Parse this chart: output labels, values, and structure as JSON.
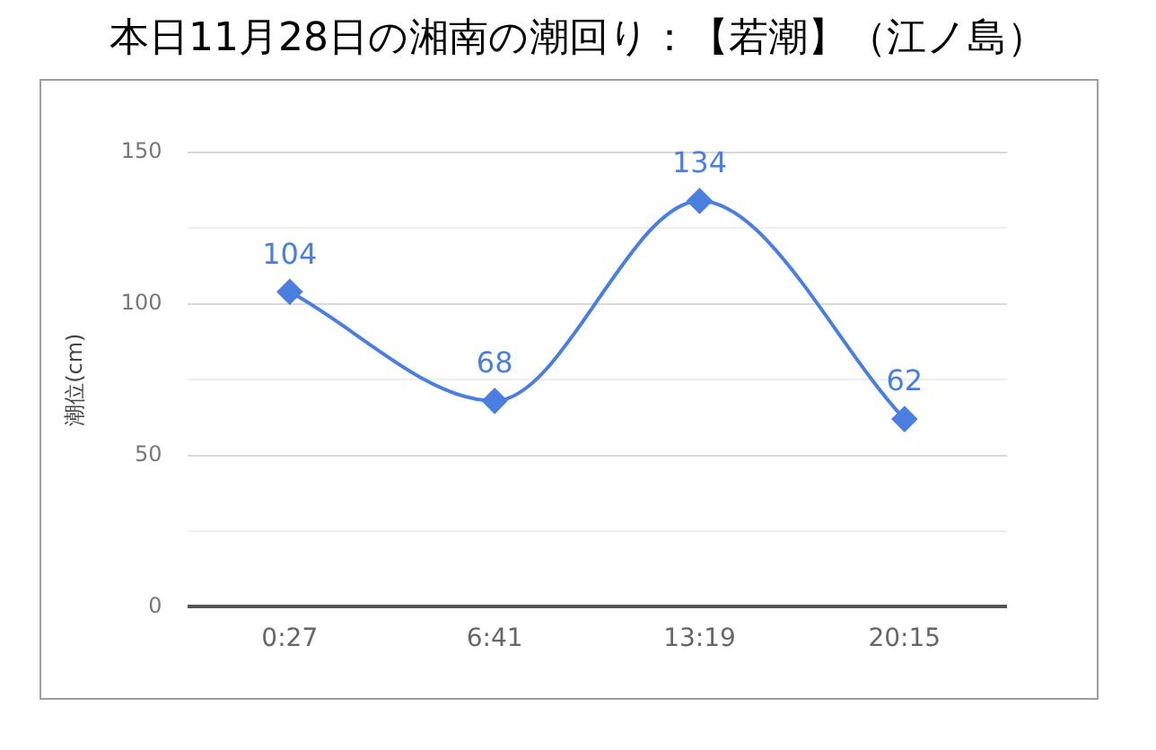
{
  "chart_data": {
    "type": "line",
    "title": "本日11月28日の湘南の潮回り：【若潮】（江ノ島）",
    "ylabel": "潮位(cm)",
    "categories": [
      "0:27",
      "6:41",
      "13:19",
      "20:15"
    ],
    "series": [
      {
        "color": "#4a7fe0",
        "values": [
          104,
          68,
          134,
          62
        ]
      }
    ],
    "ylim": [
      0,
      150
    ],
    "yticks": [
      0,
      {
        "value": 25,
        "label": null
      },
      50,
      {
        "value": 75,
        "label": null
      },
      100,
      {
        "value": 125,
        "label": null
      },
      150
    ],
    "grid": "y",
    "marker": "diamond",
    "data_labels": true,
    "legend": false
  }
}
